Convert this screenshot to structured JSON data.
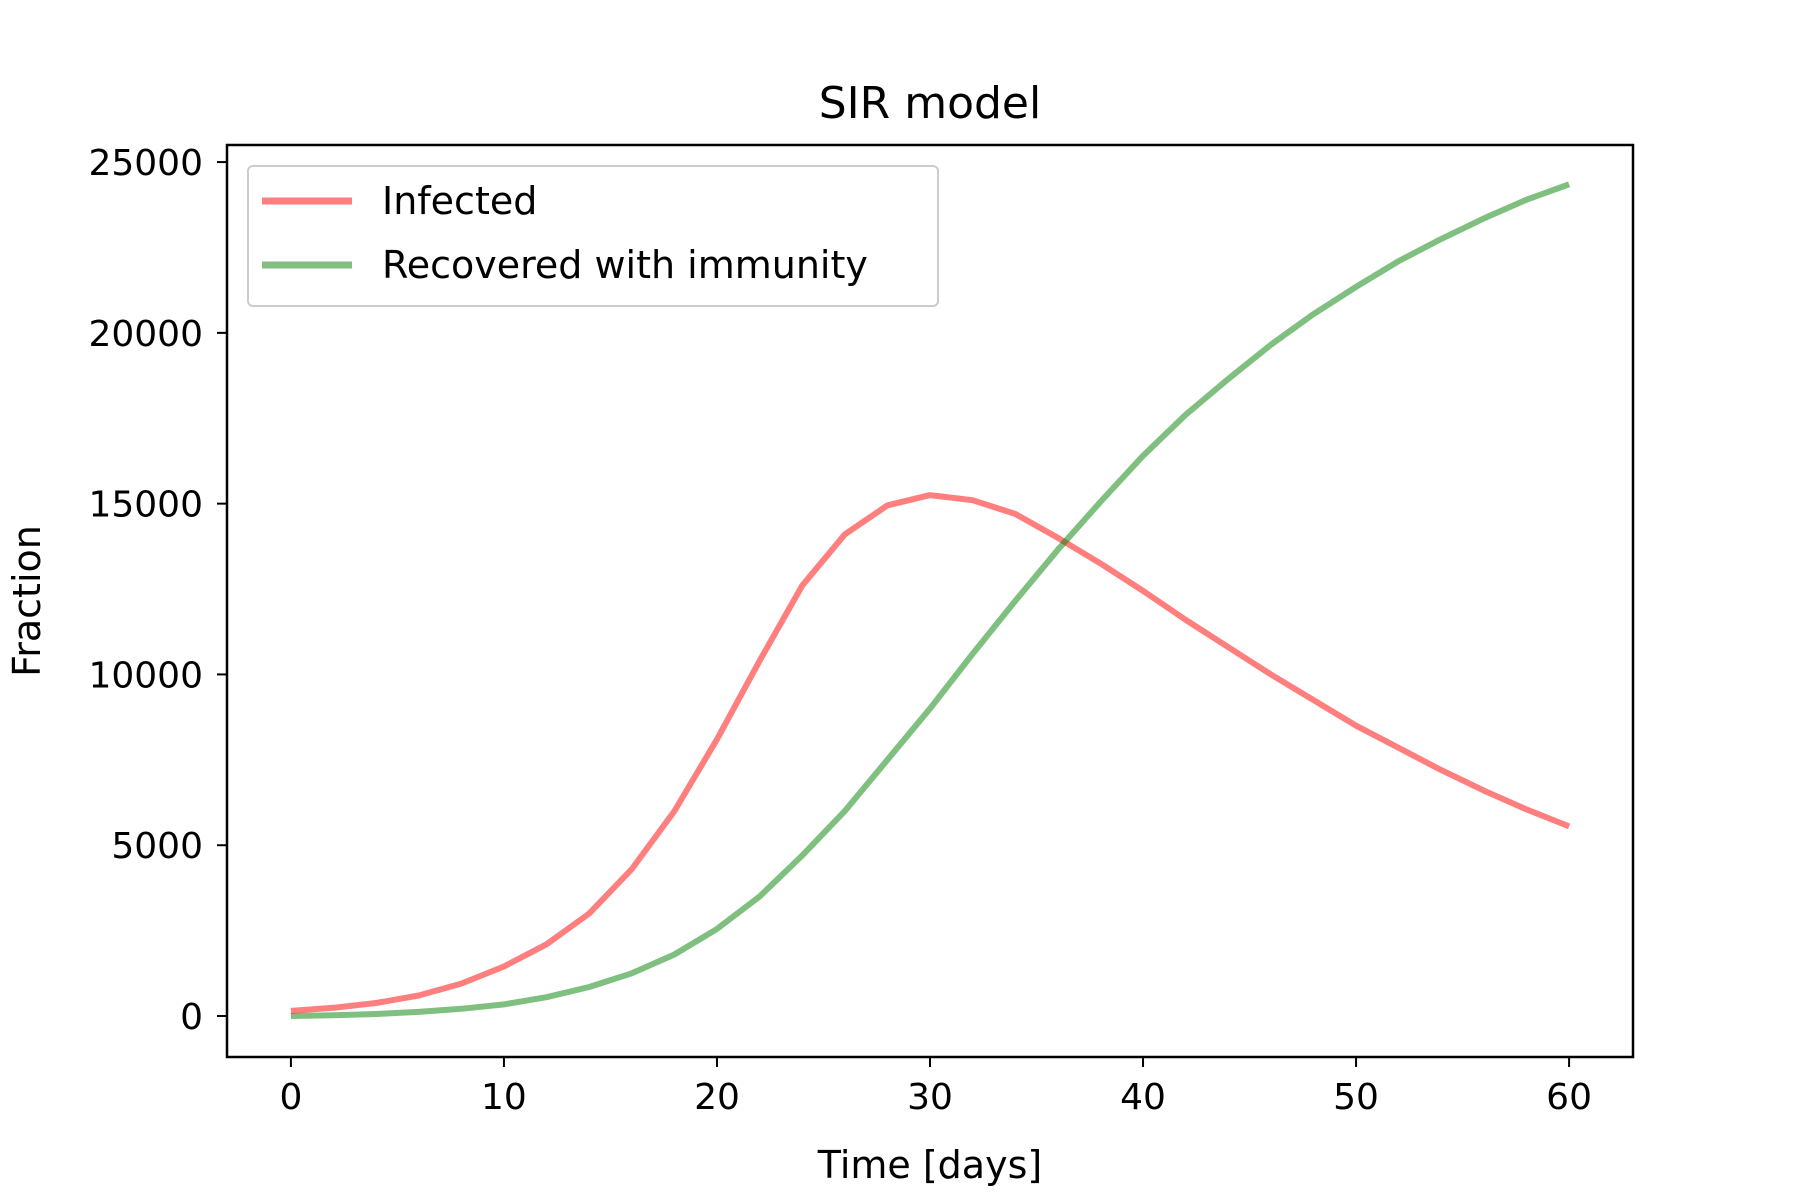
{
  "chart_data": {
    "type": "line",
    "title": "SIR model",
    "xlabel": "Time [days]",
    "ylabel": "Fraction",
    "xlim": [
      -3,
      63
    ],
    "ylim": [
      -1200,
      25500
    ],
    "xticks": [
      0,
      10,
      20,
      30,
      40,
      50,
      60
    ],
    "yticks": [
      0,
      5000,
      10000,
      15000,
      20000,
      25000
    ],
    "grid": false,
    "legend_position": "upper-left",
    "x": [
      0,
      2,
      4,
      6,
      8,
      10,
      12,
      14,
      16,
      18,
      20,
      22,
      24,
      26,
      28,
      30,
      32,
      34,
      36,
      38,
      40,
      42,
      44,
      46,
      48,
      50,
      52,
      54,
      56,
      58,
      60
    ],
    "series": [
      {
        "name": "Infected",
        "color": "#ff0000",
        "opacity": 0.5,
        "values": [
          150,
          240,
          380,
          600,
          950,
          1450,
          2100,
          3000,
          4300,
          6000,
          8100,
          10400,
          12600,
          14100,
          14950,
          15250,
          15100,
          14700,
          14000,
          13250,
          12450,
          11600,
          10800,
          10000,
          9250,
          8500,
          7850,
          7200,
          6600,
          6050,
          5550
        ]
      },
      {
        "name": "Recovered with immunity",
        "color": "#008000",
        "opacity": 0.5,
        "values": [
          0,
          25,
          60,
          120,
          210,
          340,
          550,
          850,
          1250,
          1800,
          2550,
          3500,
          4700,
          6000,
          7500,
          9000,
          10600,
          12150,
          13650,
          15050,
          16400,
          17600,
          18650,
          19650,
          20550,
          21350,
          22100,
          22750,
          23350,
          23900,
          24350
        ]
      }
    ]
  }
}
